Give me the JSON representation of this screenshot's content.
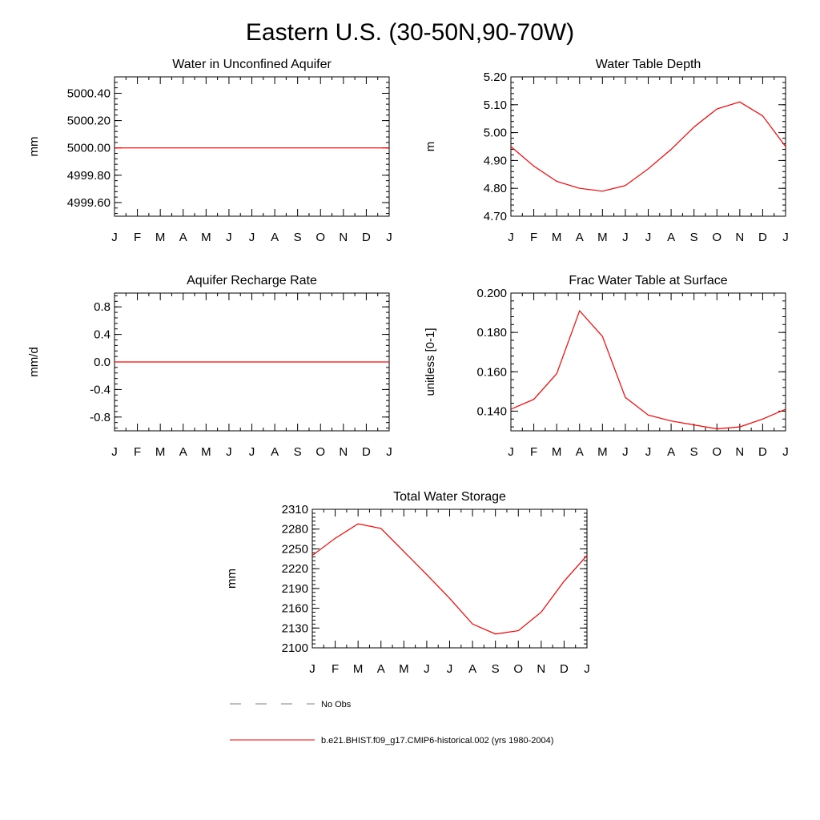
{
  "figure": {
    "title": "Eastern U.S. (30-50N,90-70W)",
    "month_labels": [
      "J",
      "F",
      "M",
      "A",
      "M",
      "J",
      "J",
      "A",
      "S",
      "O",
      "N",
      "D",
      "J"
    ]
  },
  "colors": {
    "model_line": "#ff0000",
    "obs_line": "#808080",
    "axes": "#000000"
  },
  "legend": {
    "obs_label": "No Obs",
    "model_label": "b.e21.BHIST.f09_g17.CMIP6-historical.002 (yrs 1980-2004)"
  },
  "chart_data": [
    {
      "type": "line",
      "title": "Water in Unconfined Aquifer",
      "xlabel": "",
      "ylabel": "mm",
      "ylim": [
        4999.5,
        5000.52
      ],
      "yticks": [
        4999.6,
        4999.8,
        5000.0,
        5000.2,
        5000.4
      ],
      "ytick_labels": [
        "4999.60",
        "4999.80",
        "5000.00",
        "5000.20",
        "5000.40"
      ],
      "categories": [
        "J",
        "F",
        "M",
        "A",
        "M",
        "J",
        "J",
        "A",
        "S",
        "O",
        "N",
        "D",
        "J"
      ],
      "series": [
        {
          "name": "b.e21.BHIST.f09_g17.CMIP6-historical.002 (yrs 1980-2004)",
          "values": [
            5000,
            5000,
            5000,
            5000,
            5000,
            5000,
            5000,
            5000,
            5000,
            5000,
            5000,
            5000,
            5000
          ]
        }
      ]
    },
    {
      "type": "line",
      "title": "Water Table Depth",
      "xlabel": "",
      "ylabel": "m",
      "ylim": [
        4.7,
        5.2
      ],
      "yticks": [
        4.7,
        4.8,
        4.9,
        5.0,
        5.1,
        5.2
      ],
      "ytick_labels": [
        "4.70",
        "4.80",
        "4.90",
        "5.00",
        "5.10",
        "5.20"
      ],
      "categories": [
        "J",
        "F",
        "M",
        "A",
        "M",
        "J",
        "J",
        "A",
        "S",
        "O",
        "N",
        "D",
        "J"
      ],
      "series": [
        {
          "name": "b.e21.BHIST.f09_g17.CMIP6-historical.002 (yrs 1980-2004)",
          "values": [
            4.95,
            4.88,
            4.825,
            4.8,
            4.79,
            4.81,
            4.87,
            4.94,
            5.02,
            5.085,
            5.11,
            5.06,
            4.95
          ]
        }
      ]
    },
    {
      "type": "line",
      "title": "Aquifer Recharge Rate",
      "xlabel": "",
      "ylabel": "mm/d",
      "ylim": [
        -1.0,
        1.0
      ],
      "yticks": [
        -0.8,
        -0.4,
        0.0,
        0.4,
        0.8
      ],
      "ytick_labels": [
        "-0.8",
        "-0.4",
        "0.0",
        "0.4",
        "0.8"
      ],
      "categories": [
        "J",
        "F",
        "M",
        "A",
        "M",
        "J",
        "J",
        "A",
        "S",
        "O",
        "N",
        "D",
        "J"
      ],
      "series": [
        {
          "name": "b.e21.BHIST.f09_g17.CMIP6-historical.002 (yrs 1980-2004)",
          "values": [
            0,
            0,
            0,
            0,
            0,
            0,
            0,
            0,
            0,
            0,
            0,
            0,
            0
          ]
        }
      ]
    },
    {
      "type": "line",
      "title": "Frac Water Table at Surface",
      "xlabel": "",
      "ylabel": "unitless [0-1]",
      "ylim": [
        0.13,
        0.2
      ],
      "yticks": [
        0.14,
        0.16,
        0.18,
        0.2
      ],
      "ytick_labels": [
        "0.140",
        "0.160",
        "0.180",
        "0.200"
      ],
      "categories": [
        "J",
        "F",
        "M",
        "A",
        "M",
        "J",
        "J",
        "A",
        "S",
        "O",
        "N",
        "D",
        "J"
      ],
      "series": [
        {
          "name": "b.e21.BHIST.f09_g17.CMIP6-historical.002 (yrs 1980-2004)",
          "values": [
            0.141,
            0.146,
            0.159,
            0.191,
            0.178,
            0.147,
            0.138,
            0.135,
            0.133,
            0.131,
            0.132,
            0.136,
            0.141
          ]
        }
      ]
    },
    {
      "type": "line",
      "title": "Total Water Storage",
      "xlabel": "",
      "ylabel": "mm",
      "ylim": [
        2100,
        2310
      ],
      "yticks": [
        2100,
        2130,
        2160,
        2190,
        2220,
        2250,
        2280,
        2310
      ],
      "ytick_labels": [
        "2100",
        "2130",
        "2160",
        "2190",
        "2220",
        "2250",
        "2280",
        "2310"
      ],
      "categories": [
        "J",
        "F",
        "M",
        "A",
        "M",
        "J",
        "J",
        "A",
        "S",
        "O",
        "N",
        "D",
        "J"
      ],
      "series": [
        {
          "name": "b.e21.BHIST.f09_g17.CMIP6-historical.002 (yrs 1980-2004)",
          "values": [
            2240,
            2266,
            2288,
            2281,
            2246,
            2211,
            2175,
            2136,
            2121,
            2126,
            2154,
            2201,
            2240
          ]
        }
      ]
    }
  ]
}
